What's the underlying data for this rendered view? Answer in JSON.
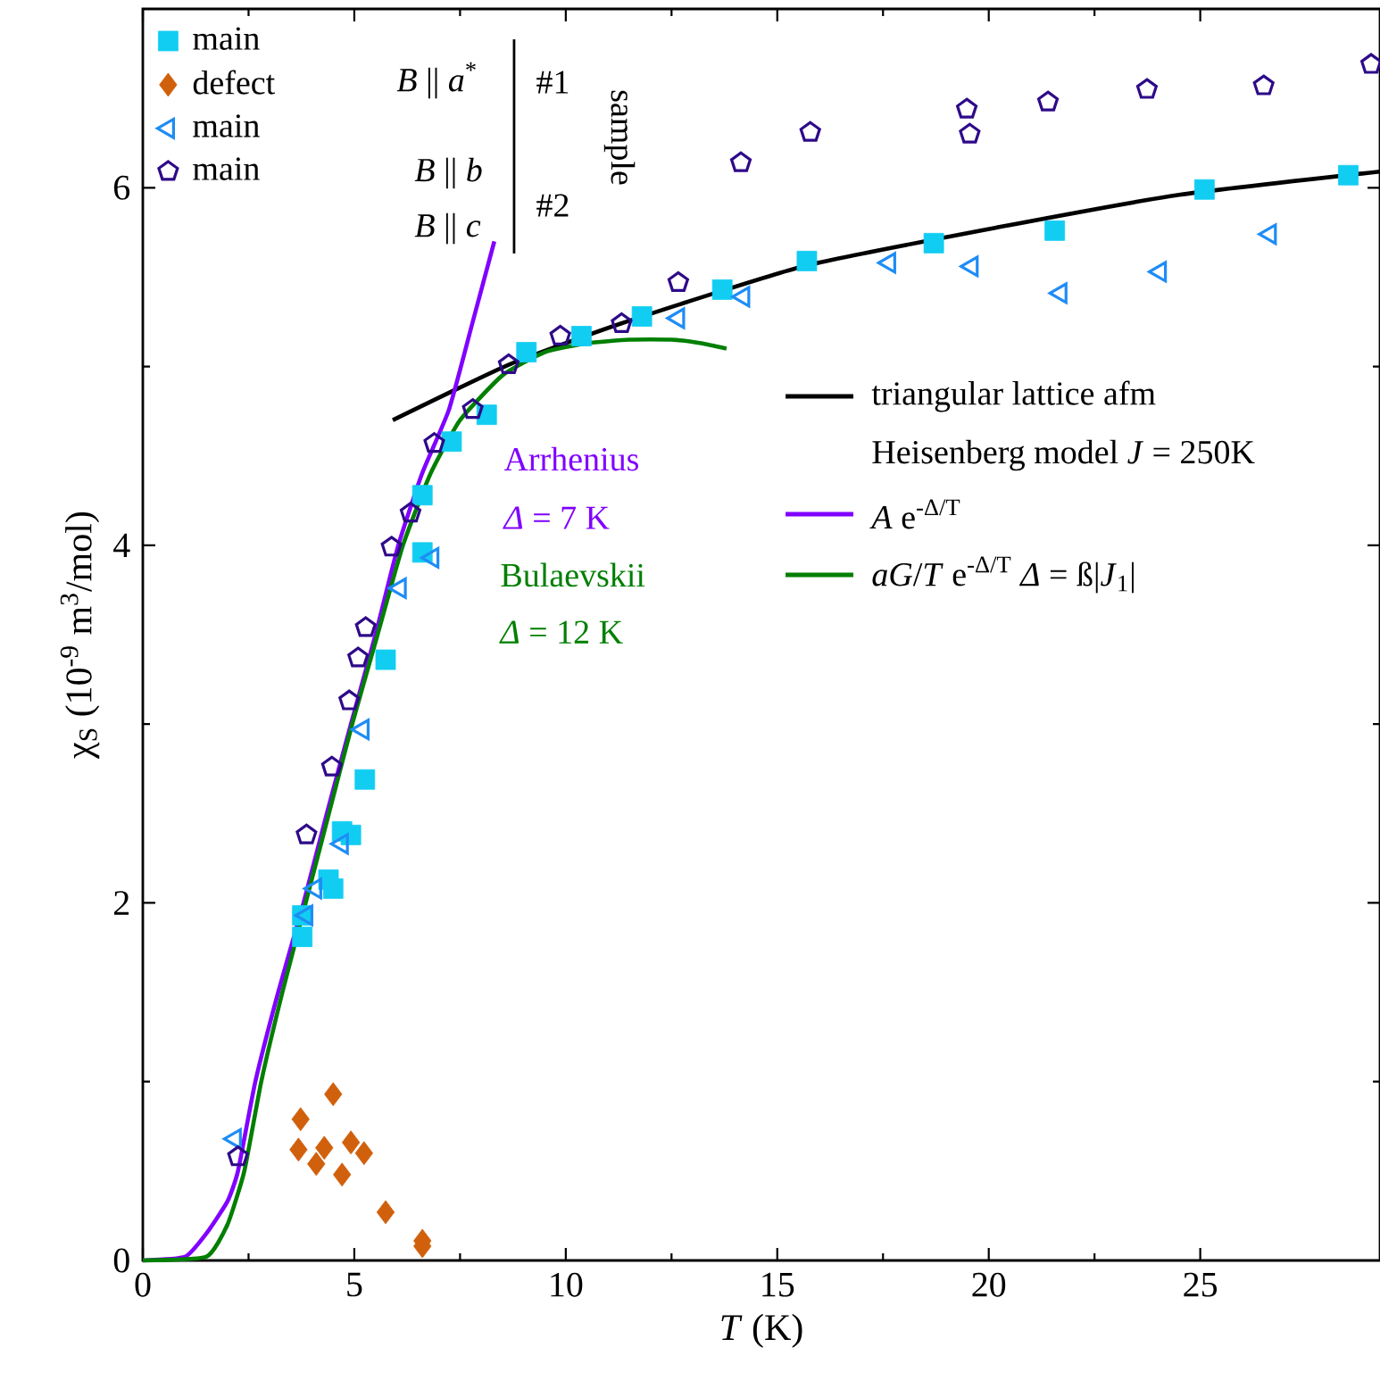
{
  "chart_data": {
    "type": "scatter",
    "xlabel": "*T* (K)",
    "ylabel": "χ$_{S}$ (10$^{-9}$ m$^{3}$/mol)",
    "xlim": [
      0,
      29.25
    ],
    "ylim": [
      0,
      7
    ],
    "xticks": [
      0,
      5,
      10,
      15,
      20,
      25
    ],
    "yticks": [
      0,
      2,
      4,
      6
    ],
    "legend": "top left",
    "series": [
      {
        "name": "main",
        "marker": "square",
        "color": "#12cdf2",
        "x": [
          3.77,
          3.77,
          4.5,
          4.39,
          4.92,
          4.71,
          5.25,
          5.74,
          6.61,
          6.61,
          7.3,
          8.13,
          9.07,
          10.37,
          11.8,
          13.7,
          15.7,
          18.7,
          21.56,
          25.1,
          28.5
        ],
        "values": [
          1.81,
          1.93,
          2.08,
          2.13,
          2.38,
          2.4,
          2.69,
          3.36,
          3.96,
          4.28,
          4.58,
          4.73,
          5.08,
          5.17,
          5.28,
          5.43,
          5.59,
          5.69,
          5.76,
          5.99,
          6.07
        ]
      },
      {
        "name": "defect",
        "marker": "diamond",
        "color": "#d0600c",
        "x": [
          4.5,
          3.73,
          3.68,
          4.29,
          4.1,
          4.92,
          5.23,
          4.71,
          5.74,
          6.61,
          6.61
        ],
        "values": [
          0.93,
          0.79,
          0.62,
          0.63,
          0.54,
          0.66,
          0.6,
          0.48,
          0.27,
          0.11,
          0.08
        ]
      },
      {
        "name": "main",
        "marker": "triangle",
        "color": "#1e8cf5",
        "x": [
          2.18,
          3.87,
          4.08,
          4.71,
          5.2,
          6.08,
          6.85,
          12.66,
          14.2,
          17.65,
          19.6,
          21.7,
          24.05,
          26.65
        ],
        "values": [
          0.68,
          1.93,
          2.08,
          2.33,
          2.97,
          3.76,
          3.93,
          5.27,
          5.39,
          5.58,
          5.56,
          5.41,
          5.53,
          5.74
        ]
      },
      {
        "name": "main",
        "color": "#2e0a88",
        "x": [
          2.25,
          3.87,
          4.47,
          4.88,
          5.09,
          5.27,
          5.88,
          6.33,
          6.89,
          7.8,
          8.65,
          9.87,
          11.32,
          12.66,
          14.14,
          15.78,
          19.48,
          19.55,
          21.4,
          23.74,
          26.5,
          29.04
        ],
        "values": [
          0.58,
          2.38,
          2.76,
          3.13,
          3.37,
          3.54,
          3.99,
          4.18,
          4.57,
          4.76,
          5.01,
          5.17,
          5.24,
          5.47,
          6.14,
          6.31,
          6.44,
          6.3,
          6.48,
          6.55,
          6.57,
          6.69
        ]
      },
      {
        "name": "triangular lattice afm",
        "type": "line",
        "color": "#000000",
        "x": [
          5.91,
          8.65,
          11.3,
          15.6,
          20.25,
          24.5,
          29.24
        ],
        "values": [
          4.7,
          5.01,
          5.24,
          5.56,
          5.78,
          5.96,
          6.09
        ]
      },
      {
        "name": "*A* e$^{-Δ/T}$",
        "type": "line",
        "color": "#8000ff",
        "x": [
          0,
          1,
          1.5,
          2,
          2.25,
          2.66,
          3.2,
          3.8,
          4.35,
          4.92,
          5.5,
          6.04,
          6.6,
          7.24,
          7.8,
          8.31
        ],
        "values": [
          0,
          0.02,
          0.15,
          0.33,
          0.5,
          1.0,
          1.5,
          2.0,
          2.5,
          3.0,
          3.5,
          4.0,
          4.4,
          4.76,
          5.25,
          5.7
        ]
      },
      {
        "name": "*aG*/*T* e$^{-Δ/T}$  *Δ* = ß|*J*$_{1}$|",
        "type": "line",
        "color": "#007f00",
        "x": [
          0,
          1.5,
          2,
          2.4,
          2.8,
          3.3,
          3.85,
          4.4,
          4.95,
          5.55,
          6.15,
          6.8,
          7.5,
          8.5,
          9.5,
          10.5,
          11.5,
          12.5,
          13.2,
          13.8
        ],
        "values": [
          0,
          0.02,
          0.2,
          0.5,
          1.0,
          1.5,
          2.0,
          2.5,
          3.0,
          3.5,
          4.0,
          4.4,
          4.7,
          4.95,
          5.08,
          5.13,
          5.15,
          5.15,
          5.13,
          5.1
        ]
      }
    ],
    "annotations": [
      "*B* || *a*$^{*}$",
      "*B* || *b*",
      "*B* || *c*",
      "#1",
      "#2",
      "sample",
      "Heisenberg model   *J* = 250K",
      "Arrhenius",
      "*Δ* = 7 K",
      "Bulaevskii",
      "*Δ* = 12 K"
    ]
  }
}
